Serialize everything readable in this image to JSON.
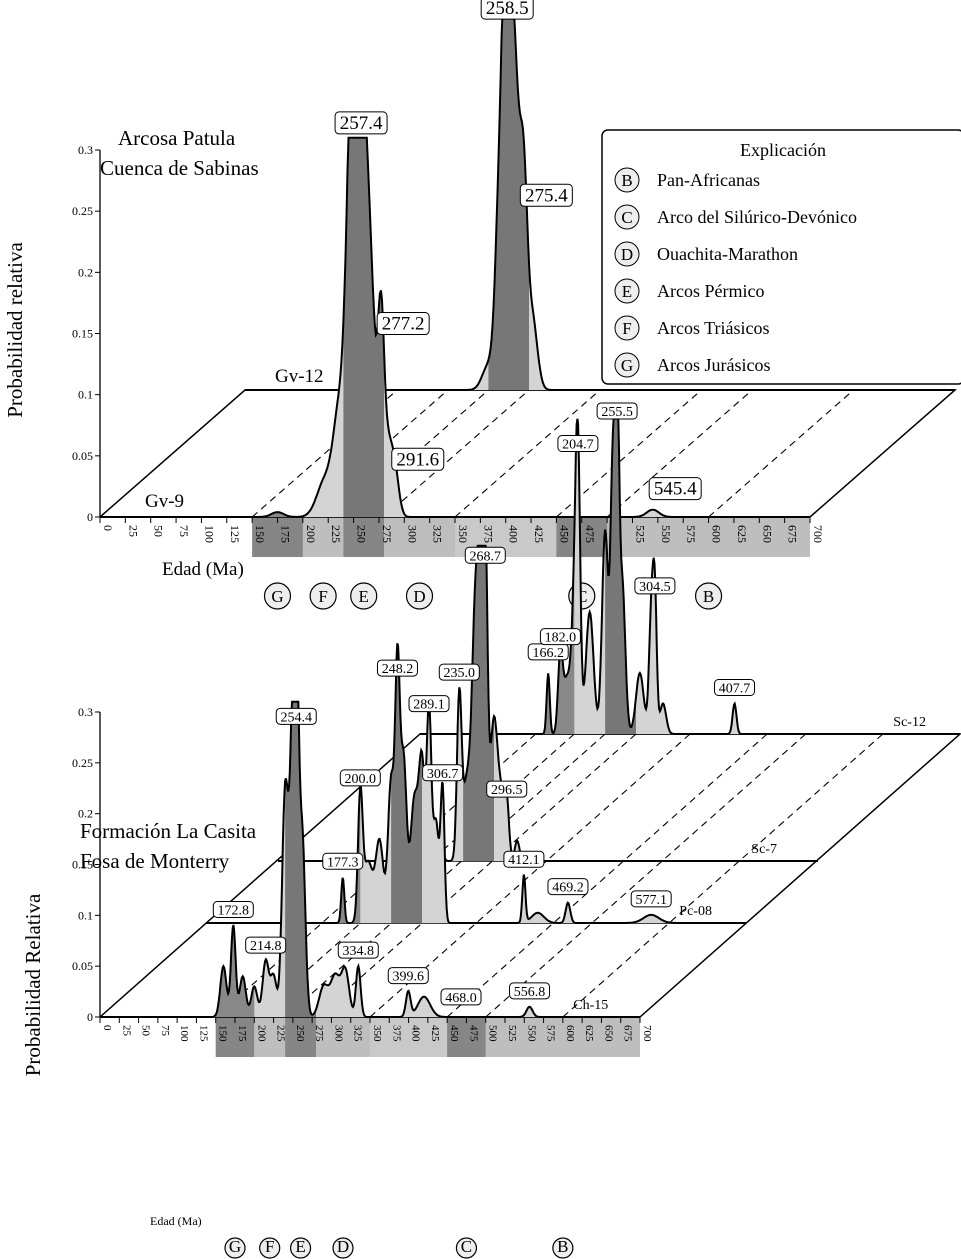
{
  "chart_data": [
    {
      "type": "area",
      "title": [
        "Arcosa Patula",
        "Cuenca de Sabinas"
      ],
      "ylabel": "Probabilidad relativa",
      "xlabel": "Edad (Ma)",
      "ylim": [
        0,
        0.3
      ],
      "yticks": [
        "0",
        "0.05",
        "0.1",
        "0.15",
        "0.2",
        "0.25",
        "0.3"
      ],
      "xticks": [
        "0",
        "25",
        "50",
        "75",
        "100",
        "125",
        "150",
        "175",
        "200",
        "225",
        "250",
        "275",
        "300",
        "325",
        "350",
        "375",
        "400",
        "425",
        "450",
        "475",
        "500",
        "525",
        "550",
        "575",
        "600",
        "625",
        "650",
        "675",
        "700"
      ],
      "series": [
        {
          "name": "Gv-9",
          "peaks": [
            [
              "257.4",
              257.4,
              0.305
            ],
            [
              "277.2",
              277.2,
              0.141
            ],
            [
              "291.6",
              291.6,
              0.03
            ],
            [
              "545.4",
              545.4,
              0.006
            ]
          ]
        },
        {
          "name": "Gv-12",
          "peaks": [
            [
              "258.5",
              258.5,
              0.295
            ],
            [
              "275.4",
              275.4,
              0.142
            ]
          ]
        }
      ],
      "legend": {
        "title": "Explicación",
        "items": [
          {
            "key": "B",
            "label": "Pan-Africanas"
          },
          {
            "key": "C",
            "label": "Arco del Silúrico-Devónico"
          },
          {
            "key": "D",
            "label": "Ouachita-Marathon"
          },
          {
            "key": "E",
            "label": "Arcos Pérmico"
          },
          {
            "key": "F",
            "label": "Arcos Triásicos"
          },
          {
            "key": "G",
            "label": "Arcos Jurásicos"
          }
        ]
      },
      "bands": [
        {
          "key": "G",
          "range": [
            150,
            200
          ]
        },
        {
          "key": "F",
          "range": [
            200,
            240
          ]
        },
        {
          "key": "E",
          "range": [
            240,
            280
          ]
        },
        {
          "key": "D",
          "range": [
            280,
            350
          ]
        },
        {
          "key": "C",
          "range": [
            450,
            500
          ]
        },
        {
          "key": "B",
          "range": [
            500,
            700
          ]
        }
      ]
    },
    {
      "type": "area",
      "title": [
        "Formación La Casita",
        "Fosa de Monterry"
      ],
      "ylabel": "Probabilidad Relativa",
      "xlabel": "Edad (Ma)",
      "ylim": [
        0,
        0.3
      ],
      "yticks": [
        "0",
        "0.05",
        "0.1",
        "0.15",
        "0.2",
        "0.25",
        "0.3"
      ],
      "xticks": [
        "0",
        "25",
        "50",
        "75",
        "100",
        "125",
        "150",
        "175",
        "200",
        "225",
        "250",
        "275",
        "300",
        "325",
        "350",
        "375",
        "400",
        "425",
        "450",
        "475",
        "500",
        "525",
        "550",
        "575",
        "600",
        "625",
        "650",
        "675",
        "700"
      ],
      "series": [
        {
          "name": "Ch-15",
          "peaks": [
            [
              "172.8",
              172.8,
              0.09
            ],
            [
              "214.8",
              214.8,
              0.055
            ],
            [
              "254.4",
              254.4,
              0.28
            ],
            [
              "334.8",
              334.8,
              0.05
            ],
            [
              "399.6",
              399.6,
              0.025
            ],
            [
              "468.0",
              468.0,
              0.004
            ],
            [
              "556.8",
              556.8,
              0.01
            ]
          ]
        },
        {
          "name": "Pc-08",
          "peaks": [
            [
              "177.3",
              177.3,
              0.045
            ],
            [
              "200.0",
              200.0,
              0.127
            ],
            [
              "248.2",
              248.2,
              0.235
            ],
            [
              "289.1",
              289.1,
              0.2
            ],
            [
              "306.7",
              306.7,
              0.132
            ],
            [
              "412.1",
              412.1,
              0.047
            ],
            [
              "469.2",
              469.2,
              0.02
            ],
            [
              "577.1",
              577.1,
              0.008
            ]
          ]
        },
        {
          "name": "Sc-7",
          "peaks": [
            [
              "235.0",
              235.0,
              0.17
            ],
            [
              "268.7",
              268.7,
              0.285
            ],
            [
              "296.5",
              296.5,
              0.055
            ]
          ]
        },
        {
          "name": "Sc-12",
          "peaks": [
            [
              "166.2",
              166.2,
              0.065
            ],
            [
              "182.0",
              182.0,
              0.08
            ],
            [
              "204.7",
              204.7,
              0.27
            ],
            [
              "255.5",
              255.5,
              0.302
            ],
            [
              "304.5",
              304.5,
              0.13
            ],
            [
              "407.7",
              407.7,
              0.03
            ]
          ]
        }
      ],
      "bands": [
        {
          "key": "G",
          "range": [
            150,
            200
          ]
        },
        {
          "key": "F",
          "range": [
            200,
            240
          ]
        },
        {
          "key": "E",
          "range": [
            240,
            280
          ]
        },
        {
          "key": "D",
          "range": [
            280,
            350
          ]
        },
        {
          "key": "C",
          "range": [
            450,
            500
          ]
        },
        {
          "key": "B",
          "range": [
            500,
            700
          ]
        }
      ]
    }
  ]
}
